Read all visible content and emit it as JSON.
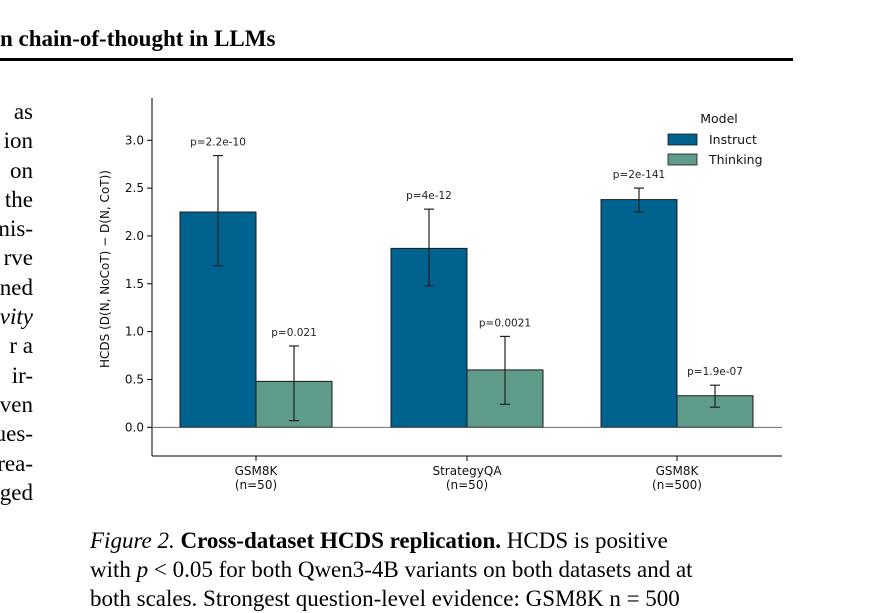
{
  "running_head": "n chain-of-thought in LLMs",
  "left_column_fragments": [
    "as",
    "ion",
    "on",
    "the",
    "mis-",
    "rve",
    "ned",
    "vity",
    "r a",
    "ir-",
    "ven",
    "ues-",
    "rea-",
    "ged"
  ],
  "left_column_italic": [
    "vity"
  ],
  "colors": {
    "instruct": "#00628f",
    "thinking": "#5e9b8b",
    "bar_edge": "#1a1a1a",
    "error_bar": "#222222"
  },
  "chart_data": {
    "type": "bar",
    "categories": [
      "GSM8K\n(n=50)",
      "StrategyQA\n(n=50)",
      "GSM8K\n(n=500)"
    ],
    "ylabel": "HCDS  (D(N, NoCoT) − D(N, CoT))",
    "ylim": [
      -0.3,
      3.4
    ],
    "yticks": [
      "0.0",
      "0.5",
      "1.0",
      "1.5",
      "2.0",
      "2.5",
      "3.0"
    ],
    "legend": {
      "title": "Model",
      "placement": "top-right"
    },
    "grid": false,
    "zero_line": true,
    "series": [
      {
        "name": "Instruct",
        "values": [
          2.25,
          1.87,
          2.38
        ],
        "err_low": [
          1.69,
          1.48,
          2.25
        ],
        "err_high": [
          2.84,
          2.28,
          2.5
        ],
        "pvalues": [
          "p=2.2e-10",
          "p=4e-12",
          "p=2e-141"
        ]
      },
      {
        "name": "Thinking",
        "values": [
          0.48,
          0.6,
          0.33
        ],
        "err_low": [
          0.07,
          0.24,
          0.21
        ],
        "err_high": [
          0.85,
          0.95,
          0.44
        ],
        "pvalues": [
          "p=0.021",
          "p=0.0021",
          "p=1.9e-07"
        ]
      }
    ]
  },
  "caption": {
    "label": "Figure 2.",
    "title": "Cross-dataset HCDS replication.",
    "line1_rest": " HCDS is positive",
    "line2_before": "with ",
    "line2_math_p": "p",
    "line2_math_rest": " < 0.05",
    "line2_after": " for both Qwen3-4B variants on both datasets and at",
    "line3": "both scales. Strongest question-level evidence: GSM8K n = 500"
  }
}
